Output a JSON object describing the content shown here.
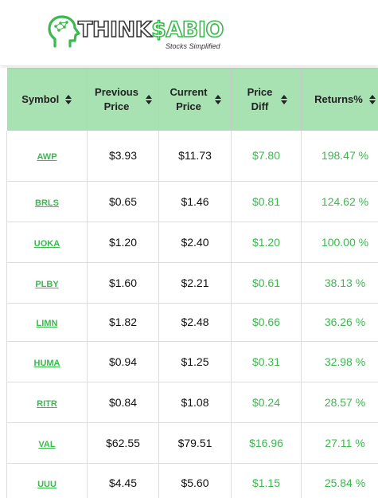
{
  "brand": {
    "name_part1": "THINK",
    "name_part2": "$ABIO",
    "tagline": "Stocks Simplified"
  },
  "colors": {
    "accent": "#3bb94e",
    "header_bg": "#a8e1b2"
  },
  "table": {
    "headers": [
      {
        "label": "Symbol",
        "icon": "sort-icon"
      },
      {
        "label": "Previous Price",
        "icon": "sort-icon"
      },
      {
        "label": "Current Price",
        "icon": "sort-icon"
      },
      {
        "label": "Price Diff",
        "icon": "sort-icon"
      },
      {
        "label": "Returns%",
        "icon": "sort-icon"
      }
    ],
    "rows": [
      {
        "symbol": "AWP",
        "previous": "$3.93",
        "current": "$11.73",
        "diff": "$7.80",
        "returns": "198.47 %"
      },
      {
        "symbol": "BRLS",
        "previous": "$0.65",
        "current": "$1.46",
        "diff": "$0.81",
        "returns": "124.62 %"
      },
      {
        "symbol": "UOKA",
        "previous": "$1.20",
        "current": "$2.40",
        "diff": "$1.20",
        "returns": "100.00 %"
      },
      {
        "symbol": "PLBY",
        "previous": "$1.60",
        "current": "$2.21",
        "diff": "$0.61",
        "returns": "38.13 %"
      },
      {
        "symbol": "LIMN",
        "previous": "$1.82",
        "current": "$2.48",
        "diff": "$0.66",
        "returns": "36.26 %"
      },
      {
        "symbol": "HUMA",
        "previous": "$0.94",
        "current": "$1.25",
        "diff": "$0.31",
        "returns": "32.98 %"
      },
      {
        "symbol": "RITR",
        "previous": "$0.84",
        "current": "$1.08",
        "diff": "$0.24",
        "returns": "28.57 %"
      },
      {
        "symbol": "VAL",
        "previous": "$62.55",
        "current": "$79.51",
        "diff": "$16.96",
        "returns": "27.11 %"
      },
      {
        "symbol": "UUU",
        "previous": "$4.45",
        "current": "$5.60",
        "diff": "$1.15",
        "returns": "25.84 %"
      }
    ]
  }
}
